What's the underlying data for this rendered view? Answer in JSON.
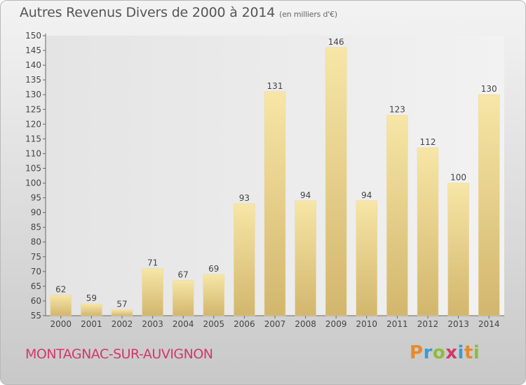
{
  "header": {
    "title": "Autres Revenus Divers de 2000 à 2014",
    "subtitle": "(en milliers d'€)"
  },
  "footer": {
    "place": "MONTAGNAC-SUR-AUVIGNON",
    "logo_letters": [
      "P",
      "r",
      "o",
      "x",
      "i",
      "t",
      "i"
    ],
    "logo_colors": [
      "#e8892b",
      "#3a9ad9",
      "#8cbc3c",
      "#d2386a",
      "#3a9ad9",
      "#e8892b",
      "#8cbc3c"
    ]
  },
  "colors": {
    "bar_light": "#f7e6a6",
    "bar_dark": "#d2b66d",
    "place_text": "#d2386a",
    "axis_text": "#444444"
  },
  "chart_data": {
    "type": "bar",
    "title": "Autres Revenus Divers de 2000 à 2014",
    "subtitle": "(en milliers d'€)",
    "categories": [
      "2000",
      "2001",
      "2002",
      "2003",
      "2004",
      "2005",
      "2006",
      "2007",
      "2008",
      "2009",
      "2010",
      "2011",
      "2012",
      "2013",
      "2014"
    ],
    "values": [
      62,
      59,
      57,
      71,
      67,
      69,
      93,
      131,
      94,
      146,
      94,
      123,
      112,
      100,
      130
    ],
    "ylim": [
      55,
      150
    ],
    "yticks": [
      55,
      60,
      65,
      70,
      75,
      80,
      85,
      90,
      95,
      100,
      105,
      110,
      115,
      120,
      125,
      130,
      135,
      140,
      145,
      150
    ],
    "grid": false,
    "data_labels": true
  }
}
